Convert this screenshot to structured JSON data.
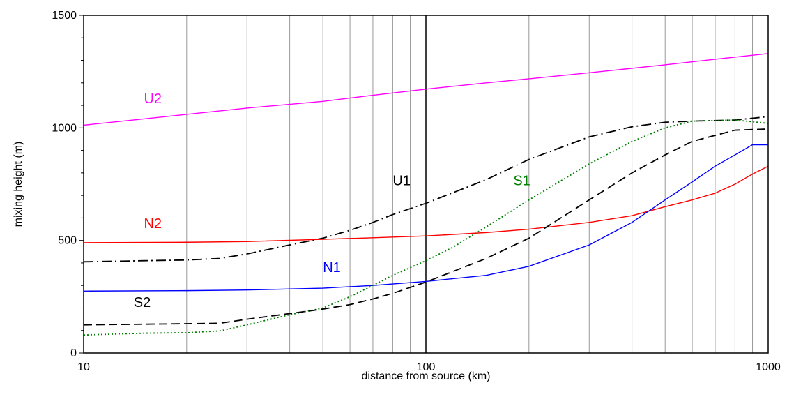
{
  "chart_data": {
    "type": "line",
    "xlabel": "distance from  source (km)",
    "ylabel": "mixing height (m)",
    "xscale": "log",
    "xlim": [
      10,
      1000
    ],
    "ylim": [
      0,
      1500
    ],
    "x_ticks": [
      "10",
      "100",
      "1000"
    ],
    "y_ticks": [
      "0",
      "500",
      "1000",
      "1500"
    ],
    "grid": "vertical",
    "legend": "inline labels",
    "series": [
      {
        "name": "U2",
        "color": "#ff00ff",
        "dash": "solid",
        "label_at": [
          15,
          1110
        ],
        "points": [
          [
            10,
            1012
          ],
          [
            15,
            1040
          ],
          [
            20,
            1060
          ],
          [
            30,
            1088
          ],
          [
            50,
            1118
          ],
          [
            70,
            1145
          ],
          [
            100,
            1172
          ],
          [
            150,
            1200
          ],
          [
            200,
            1218
          ],
          [
            300,
            1245
          ],
          [
            500,
            1280
          ],
          [
            700,
            1305
          ],
          [
            1000,
            1330
          ]
        ]
      },
      {
        "name": "U1",
        "color": "#000000",
        "dash": "dashdot",
        "label_at": [
          80,
          745
        ],
        "points": [
          [
            10,
            405
          ],
          [
            15,
            410
          ],
          [
            20,
            413
          ],
          [
            25,
            420
          ],
          [
            30,
            440
          ],
          [
            40,
            480
          ],
          [
            50,
            510
          ],
          [
            60,
            545
          ],
          [
            70,
            580
          ],
          [
            80,
            615
          ],
          [
            100,
            665
          ],
          [
            150,
            770
          ],
          [
            200,
            860
          ],
          [
            300,
            960
          ],
          [
            400,
            1005
          ],
          [
            500,
            1025
          ],
          [
            600,
            1030
          ],
          [
            800,
            1035
          ],
          [
            1000,
            1050
          ]
        ]
      },
      {
        "name": "N2",
        "color": "#ff0000",
        "dash": "solid",
        "label_at": [
          15,
          555
        ],
        "points": [
          [
            10,
            490
          ],
          [
            20,
            492
          ],
          [
            30,
            495
          ],
          [
            50,
            505
          ],
          [
            70,
            512
          ],
          [
            100,
            520
          ],
          [
            150,
            535
          ],
          [
            200,
            550
          ],
          [
            300,
            580
          ],
          [
            400,
            610
          ],
          [
            500,
            650
          ],
          [
            600,
            680
          ],
          [
            700,
            710
          ],
          [
            800,
            750
          ],
          [
            900,
            795
          ],
          [
            1000,
            830
          ]
        ]
      },
      {
        "name": "N1",
        "color": "#0000ff",
        "dash": "solid",
        "label_at": [
          50,
          360
        ],
        "points": [
          [
            10,
            275
          ],
          [
            20,
            277
          ],
          [
            30,
            280
          ],
          [
            50,
            288
          ],
          [
            70,
            300
          ],
          [
            100,
            318
          ],
          [
            150,
            345
          ],
          [
            200,
            385
          ],
          [
            300,
            480
          ],
          [
            400,
            580
          ],
          [
            500,
            680
          ],
          [
            600,
            760
          ],
          [
            700,
            830
          ],
          [
            800,
            880
          ],
          [
            900,
            925
          ],
          [
            1000,
            925
          ]
        ]
      },
      {
        "name": "S1",
        "color": "#008000",
        "dash": "dotted",
        "label_at": [
          180,
          745
        ],
        "points": [
          [
            10,
            80
          ],
          [
            15,
            88
          ],
          [
            20,
            90
          ],
          [
            25,
            98
          ],
          [
            30,
            125
          ],
          [
            40,
            170
          ],
          [
            50,
            200
          ],
          [
            60,
            250
          ],
          [
            70,
            300
          ],
          [
            80,
            345
          ],
          [
            100,
            410
          ],
          [
            120,
            470
          ],
          [
            150,
            560
          ],
          [
            200,
            680
          ],
          [
            300,
            840
          ],
          [
            400,
            940
          ],
          [
            500,
            1000
          ],
          [
            600,
            1030
          ],
          [
            800,
            1035
          ],
          [
            1000,
            1020
          ]
        ]
      },
      {
        "name": "S2",
        "color": "#000000",
        "dash": "dashed",
        "label_at": [
          14,
          205
        ],
        "points": [
          [
            10,
            125
          ],
          [
            15,
            128
          ],
          [
            20,
            130
          ],
          [
            25,
            132
          ],
          [
            30,
            150
          ],
          [
            40,
            175
          ],
          [
            50,
            195
          ],
          [
            60,
            215
          ],
          [
            70,
            240
          ],
          [
            80,
            265
          ],
          [
            100,
            315
          ],
          [
            150,
            420
          ],
          [
            200,
            510
          ],
          [
            300,
            680
          ],
          [
            400,
            800
          ],
          [
            500,
            880
          ],
          [
            600,
            940
          ],
          [
            800,
            990
          ],
          [
            1000,
            995
          ]
        ]
      }
    ]
  }
}
